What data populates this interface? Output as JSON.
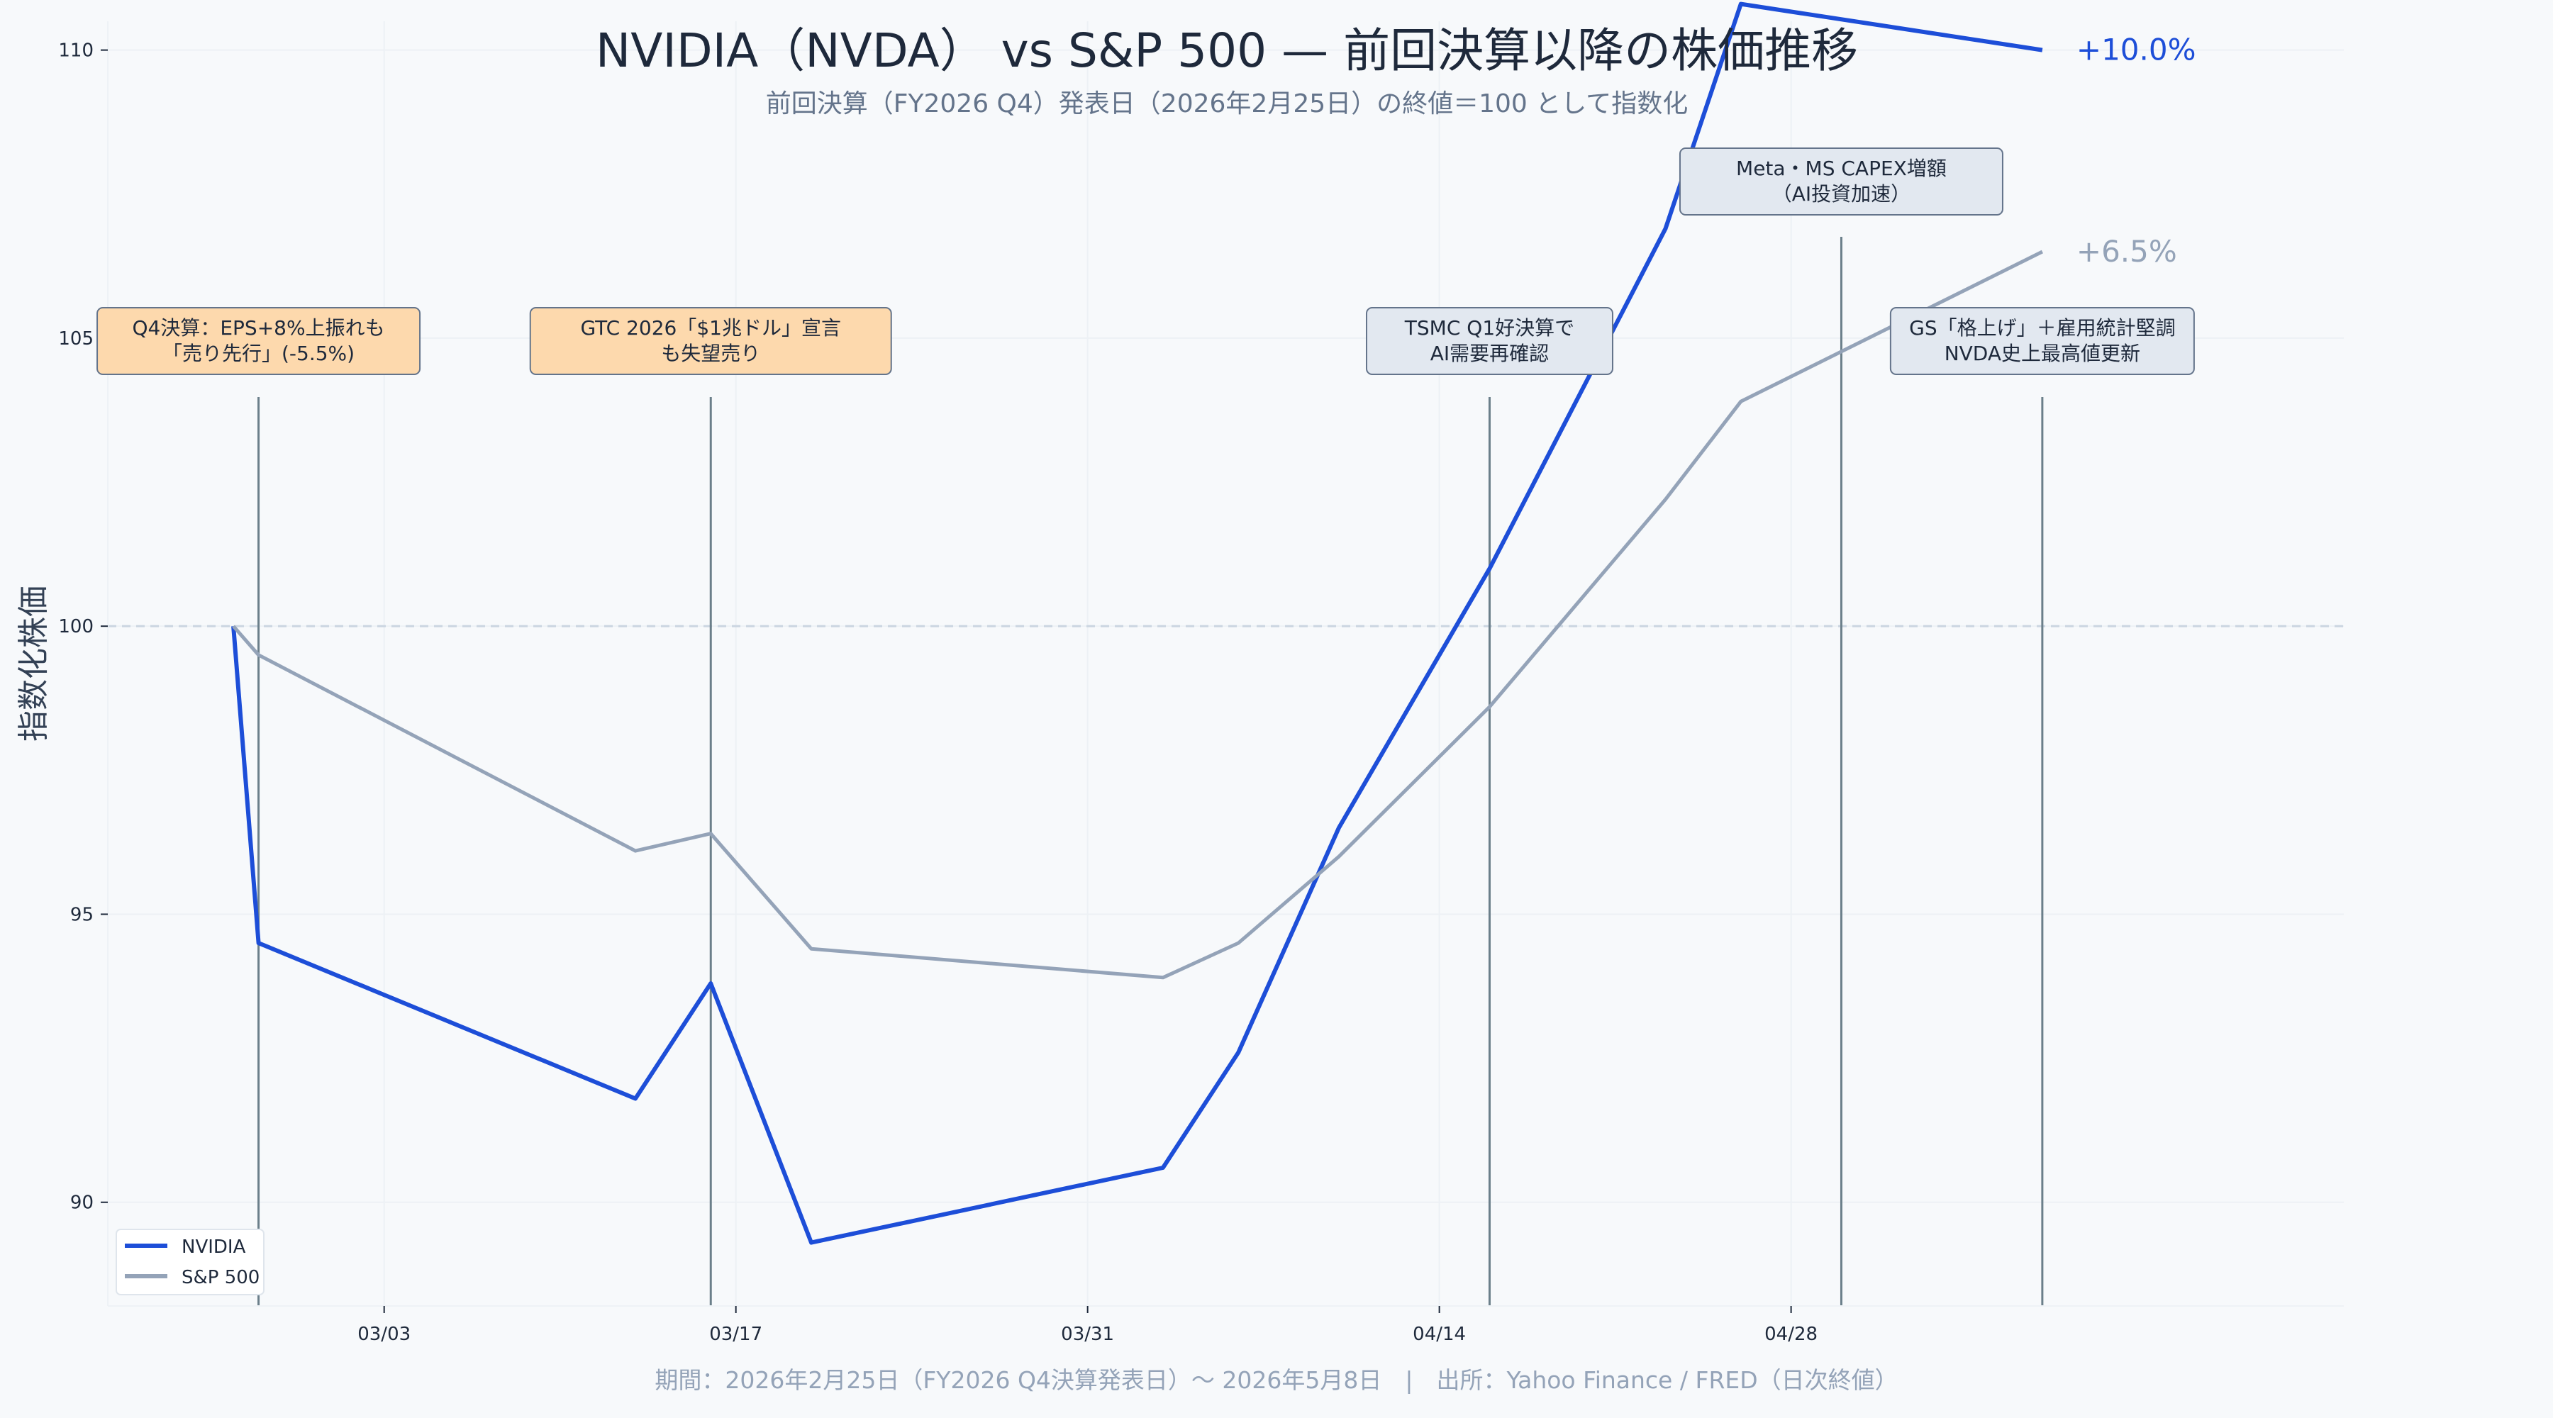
{
  "chart_data": {
    "type": "line",
    "title": "NVIDIA（NVDA） vs S&P 500 — 前回決算以降の株価推移",
    "subtitle": "前回決算（FY2026 Q4）発表日（2026年2月25日）の終値＝100 として指数化",
    "ylabel": "指数化株価",
    "xlabel": "",
    "ylim": [
      88.2,
      110.5
    ],
    "xlim": [
      "2026-02-20",
      "2026-05-20"
    ],
    "x_ticks": [
      {
        "date": "2026-03-03",
        "label": "03/03"
      },
      {
        "date": "2026-03-17",
        "label": "03/17"
      },
      {
        "date": "2026-03-31",
        "label": "03/31"
      },
      {
        "date": "2026-04-14",
        "label": "04/14"
      },
      {
        "date": "2026-04-28",
        "label": "04/28"
      }
    ],
    "y_ticks": [
      90,
      95,
      100,
      105,
      110
    ],
    "baseline": 100,
    "grid": true,
    "legend_position": "bottom-left",
    "series": [
      {
        "name": "NVIDIA",
        "color": "#1d4ed8",
        "end_label": "+10.0%",
        "points": [
          {
            "x": "2026-02-25",
            "y": 100.0
          },
          {
            "x": "2026-02-26",
            "y": 94.5
          },
          {
            "x": "2026-03-13",
            "y": 91.8
          },
          {
            "x": "2026-03-16",
            "y": 93.8
          },
          {
            "x": "2026-03-20",
            "y": 89.3
          },
          {
            "x": "2026-04-03",
            "y": 90.6
          },
          {
            "x": "2026-04-06",
            "y": 92.6
          },
          {
            "x": "2026-04-10",
            "y": 96.5
          },
          {
            "x": "2026-04-16",
            "y": 101.0
          },
          {
            "x": "2026-04-23",
            "y": 106.9
          },
          {
            "x": "2026-04-26",
            "y": 110.8
          },
          {
            "x": "2026-05-08",
            "y": 110.0
          }
        ]
      },
      {
        "name": "S&P 500",
        "color": "#94a3b8",
        "end_label": "+6.5%",
        "points": [
          {
            "x": "2026-02-25",
            "y": 100.0
          },
          {
            "x": "2026-02-26",
            "y": 99.5
          },
          {
            "x": "2026-03-13",
            "y": 96.1
          },
          {
            "x": "2026-03-16",
            "y": 96.4
          },
          {
            "x": "2026-03-20",
            "y": 94.4
          },
          {
            "x": "2026-04-03",
            "y": 93.9
          },
          {
            "x": "2026-04-06",
            "y": 94.5
          },
          {
            "x": "2026-04-10",
            "y": 96.0
          },
          {
            "x": "2026-04-16",
            "y": 98.6
          },
          {
            "x": "2026-04-23",
            "y": 102.2
          },
          {
            "x": "2026-04-26",
            "y": 103.9
          },
          {
            "x": "2026-05-08",
            "y": 106.5
          }
        ]
      }
    ],
    "annotations": [
      {
        "date": "2026-02-26",
        "lines": [
          "Q4決算：EPS+8%上振れも",
          "「売り先行」(-5.5%)"
        ],
        "style": "negative",
        "level": "low"
      },
      {
        "date": "2026-03-16",
        "lines": [
          "GTC 2026「$1兆ドル」宣言",
          "も失望売り"
        ],
        "style": "negative",
        "level": "low"
      },
      {
        "date": "2026-04-16",
        "lines": [
          "TSMC Q1好決算で",
          "AI需要再確認"
        ],
        "style": "positive",
        "level": "low"
      },
      {
        "date": "2026-04-30",
        "lines": [
          "Meta・MS CAPEX増額",
          "（AI投資加速）"
        ],
        "style": "positive",
        "level": "high"
      },
      {
        "date": "2026-05-08",
        "lines": [
          "GS「格上げ」＋雇用統計堅調",
          "NVDA史上最高値更新"
        ],
        "style": "positive",
        "level": "low"
      }
    ],
    "footer": "期間：2026年2月25日（FY2026 Q4決算発表日）〜 2026年5月8日　|　出所：Yahoo Finance / FRED（日次終値）"
  },
  "colors": {
    "background": "#f7f9fb",
    "text_dark": "#1e293b",
    "text_muted": "#64748b",
    "footer_text": "#94a3b8",
    "event_line": "#6b7f8a",
    "negative_box_fill": "#fdd9ad",
    "positive_box_fill": "#e2e8f0",
    "box_stroke": "#64748b",
    "baseline": "#cbd5e1",
    "grid": "#edf1f5"
  }
}
